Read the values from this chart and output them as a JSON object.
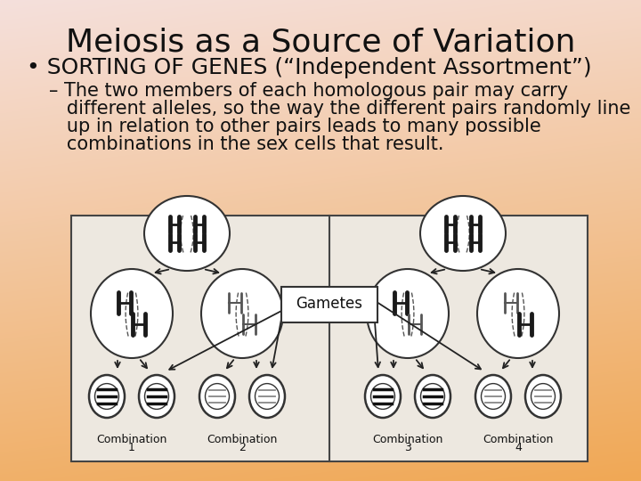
{
  "title": "Meiosis as a Source of Variation",
  "bullet": "SORTING OF GENES (“Independent Assortment”)",
  "dash_line1": "– The two members of each homologous pair may carry",
  "dash_line2": "   different alleles, so the way the different pairs randomly line",
  "dash_line3": "   up in relation to other pairs leads to many possible",
  "dash_line4": "   combinations in the sex cells that result.",
  "title_fontsize": 26,
  "bullet_fontsize": 18,
  "dash_fontsize": 15,
  "bg_top": "#f5e0dc",
  "bg_bottom": "#f0a855",
  "text_color": "#111111",
  "box_facecolor": "#ede8e0",
  "gametes_label": "Gametes",
  "combo_labels": [
    "Combination\n1",
    "Combination\n2",
    "Combination\n3",
    "Combination\n4"
  ]
}
